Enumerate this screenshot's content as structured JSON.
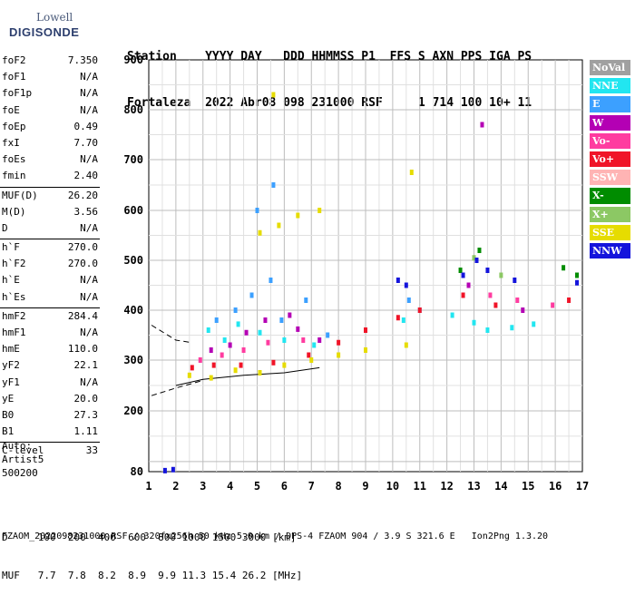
{
  "logo": {
    "top": "Lowell",
    "bottom": "DIGISONDE"
  },
  "header": {
    "line1": "Station    YYYY DAY   DDD HHMMSS P1  FFS S AXN PPS IGA PS",
    "line2": "Fortaleza  2022 Abr08 098 231000 RSF     1 714 100 10+ 11"
  },
  "params": [
    {
      "label": "foF2",
      "value": "7.350"
    },
    {
      "label": "foF1",
      "value": "N/A"
    },
    {
      "label": "foF1p",
      "value": "N/A"
    },
    {
      "label": "foE",
      "value": "N/A"
    },
    {
      "label": "foEp",
      "value": "0.49"
    },
    {
      "label": "fxI",
      "value": "7.70"
    },
    {
      "label": "foEs",
      "value": "N/A"
    },
    {
      "label": "fmin",
      "value": "2.40"
    },
    {
      "label": "MUF(D)",
      "value": "26.20",
      "sep": true
    },
    {
      "label": "M(D)",
      "value": "3.56"
    },
    {
      "label": "D",
      "value": "N/A"
    },
    {
      "label": "h`F",
      "value": "270.0",
      "sep": true
    },
    {
      "label": "h`F2",
      "value": "270.0"
    },
    {
      "label": "h`E",
      "value": "N/A"
    },
    {
      "label": "h`Es",
      "value": "N/A"
    },
    {
      "label": "hmF2",
      "value": "284.4",
      "sep": true
    },
    {
      "label": "hmF1",
      "value": "N/A"
    },
    {
      "label": "hmE",
      "value": "110.0"
    },
    {
      "label": "yF2",
      "value": "22.1"
    },
    {
      "label": "yF1",
      "value": "N/A"
    },
    {
      "label": "yE",
      "value": "20.0"
    },
    {
      "label": "B0",
      "value": "27.3"
    },
    {
      "label": "B1",
      "value": "1.11"
    },
    {
      "label": "C-level",
      "value": "33",
      "sep": true
    }
  ],
  "auto": {
    "line1": "Auto:",
    "line2": "Artist5",
    "line3": "500200"
  },
  "legend": [
    {
      "label": "NoVal",
      "color": "#a0a0a0"
    },
    {
      "label": "NNE",
      "color": "#22e6f0"
    },
    {
      "label": "E",
      "color": "#3ca0ff"
    },
    {
      "label": "W",
      "color": "#b400b4"
    },
    {
      "label": "Vo-",
      "color": "#ff3ca0"
    },
    {
      "label": "Vo+",
      "color": "#f01428"
    },
    {
      "label": "SSW",
      "color": "#ffb4b4"
    },
    {
      "label": "X-",
      "color": "#008c00"
    },
    {
      "label": "X+",
      "color": "#8cc864"
    },
    {
      "label": "SSE",
      "color": "#e6dc00"
    },
    {
      "label": "NNW",
      "color": "#1414dc"
    }
  ],
  "bottom": {
    "d_row": "D     100  200  400  600  800 1000 1500 3000 [km]",
    "muf_row": "MUF   7.7  7.8  8.2  8.9  9.9 11.3 15.4 26.2 [MHz]"
  },
  "footer": "FZAOM_2022098231000.RSF / 320fx256h 50 kHz 5.0 km / DPS-4 FZAOM 904 / 3.9 S 321.6 E   Ion2Png 1.3.20",
  "chart_data": {
    "type": "scatter",
    "xlabel": "",
    "ylabel": "",
    "xlim": [
      1,
      17
    ],
    "ylim": [
      80,
      900
    ],
    "xticks": [
      "1",
      "2",
      "3",
      "4",
      "5",
      "6",
      "7",
      "8",
      "9",
      "10",
      "11",
      "12",
      "13",
      "14",
      "15",
      "16",
      "17"
    ],
    "yticks": [
      "80",
      "200",
      "300",
      "400",
      "500",
      "600",
      "700",
      "800",
      "900"
    ],
    "grid": true,
    "series": [
      {
        "name": "NNE",
        "color": "#22e6f0",
        "points": [
          [
            3.2,
            360
          ],
          [
            3.8,
            340
          ],
          [
            4.3,
            372
          ],
          [
            5.1,
            355
          ],
          [
            6.0,
            340
          ],
          [
            7.1,
            330
          ],
          [
            10.4,
            380
          ],
          [
            12.2,
            390
          ],
          [
            13.0,
            375
          ],
          [
            13.5,
            360
          ],
          [
            14.4,
            365
          ],
          [
            15.2,
            372
          ]
        ]
      },
      {
        "name": "E",
        "color": "#3ca0ff",
        "points": [
          [
            3.5,
            380
          ],
          [
            4.2,
            400
          ],
          [
            4.8,
            430
          ],
          [
            5.5,
            460
          ],
          [
            5.9,
            380
          ],
          [
            6.8,
            420
          ],
          [
            7.6,
            350
          ],
          [
            10.6,
            420
          ],
          [
            11.0,
            400
          ],
          [
            5.0,
            600
          ],
          [
            5.6,
            650
          ]
        ]
      },
      {
        "name": "W",
        "color": "#b400b4",
        "points": [
          [
            3.3,
            320
          ],
          [
            4.0,
            330
          ],
          [
            4.6,
            355
          ],
          [
            5.3,
            380
          ],
          [
            6.2,
            390
          ],
          [
            6.5,
            362
          ],
          [
            7.3,
            340
          ],
          [
            13.3,
            770
          ],
          [
            12.8,
            450
          ],
          [
            14.8,
            400
          ]
        ]
      },
      {
        "name": "Vo-",
        "color": "#ff3ca0",
        "points": [
          [
            2.9,
            300
          ],
          [
            3.7,
            310
          ],
          [
            4.5,
            320
          ],
          [
            5.4,
            335
          ],
          [
            6.7,
            340
          ],
          [
            13.6,
            430
          ],
          [
            14.6,
            420
          ],
          [
            15.9,
            410
          ]
        ]
      },
      {
        "name": "Vo+",
        "color": "#f01428",
        "points": [
          [
            2.6,
            285
          ],
          [
            3.4,
            290
          ],
          [
            4.4,
            290
          ],
          [
            5.6,
            295
          ],
          [
            6.9,
            310
          ],
          [
            8.0,
            335
          ],
          [
            9.0,
            360
          ],
          [
            10.2,
            385
          ],
          [
            11.0,
            400
          ],
          [
            12.6,
            430
          ],
          [
            13.8,
            410
          ],
          [
            16.5,
            420
          ]
        ]
      },
      {
        "name": "X-",
        "color": "#008c00",
        "points": [
          [
            12.5,
            480
          ],
          [
            13.2,
            520
          ],
          [
            16.3,
            485
          ],
          [
            16.8,
            470
          ]
        ]
      },
      {
        "name": "X+",
        "color": "#8cc864",
        "points": [
          [
            13.0,
            505
          ],
          [
            14.0,
            470
          ]
        ]
      },
      {
        "name": "SSE",
        "color": "#e6dc00",
        "points": [
          [
            2.5,
            270
          ],
          [
            3.3,
            265
          ],
          [
            4.2,
            280
          ],
          [
            5.1,
            275
          ],
          [
            6.0,
            290
          ],
          [
            7.0,
            300
          ],
          [
            8.0,
            310
          ],
          [
            9.0,
            320
          ],
          [
            5.1,
            555
          ],
          [
            5.8,
            570
          ],
          [
            6.5,
            590
          ],
          [
            7.3,
            600
          ],
          [
            10.7,
            675
          ],
          [
            5.6,
            830
          ],
          [
            10.5,
            330
          ]
        ]
      },
      {
        "name": "NNW",
        "color": "#1414dc",
        "points": [
          [
            1.6,
            82
          ],
          [
            1.9,
            84
          ],
          [
            10.2,
            460
          ],
          [
            10.5,
            450
          ],
          [
            12.6,
            470
          ],
          [
            13.1,
            500
          ],
          [
            13.5,
            480
          ],
          [
            14.5,
            460
          ],
          [
            16.8,
            455
          ]
        ]
      }
    ],
    "lines": [
      {
        "style": "dashed",
        "points": [
          [
            1.1,
            370
          ],
          [
            2.0,
            340
          ],
          [
            2.6,
            335
          ]
        ]
      },
      {
        "style": "dashed",
        "points": [
          [
            1.1,
            230
          ],
          [
            2.0,
            245
          ],
          [
            3.0,
            260
          ]
        ]
      },
      {
        "style": "solid",
        "points": [
          [
            2.0,
            250
          ],
          [
            3.0,
            262
          ],
          [
            4.5,
            270
          ],
          [
            6.0,
            275
          ],
          [
            7.3,
            285
          ]
        ]
      }
    ]
  }
}
